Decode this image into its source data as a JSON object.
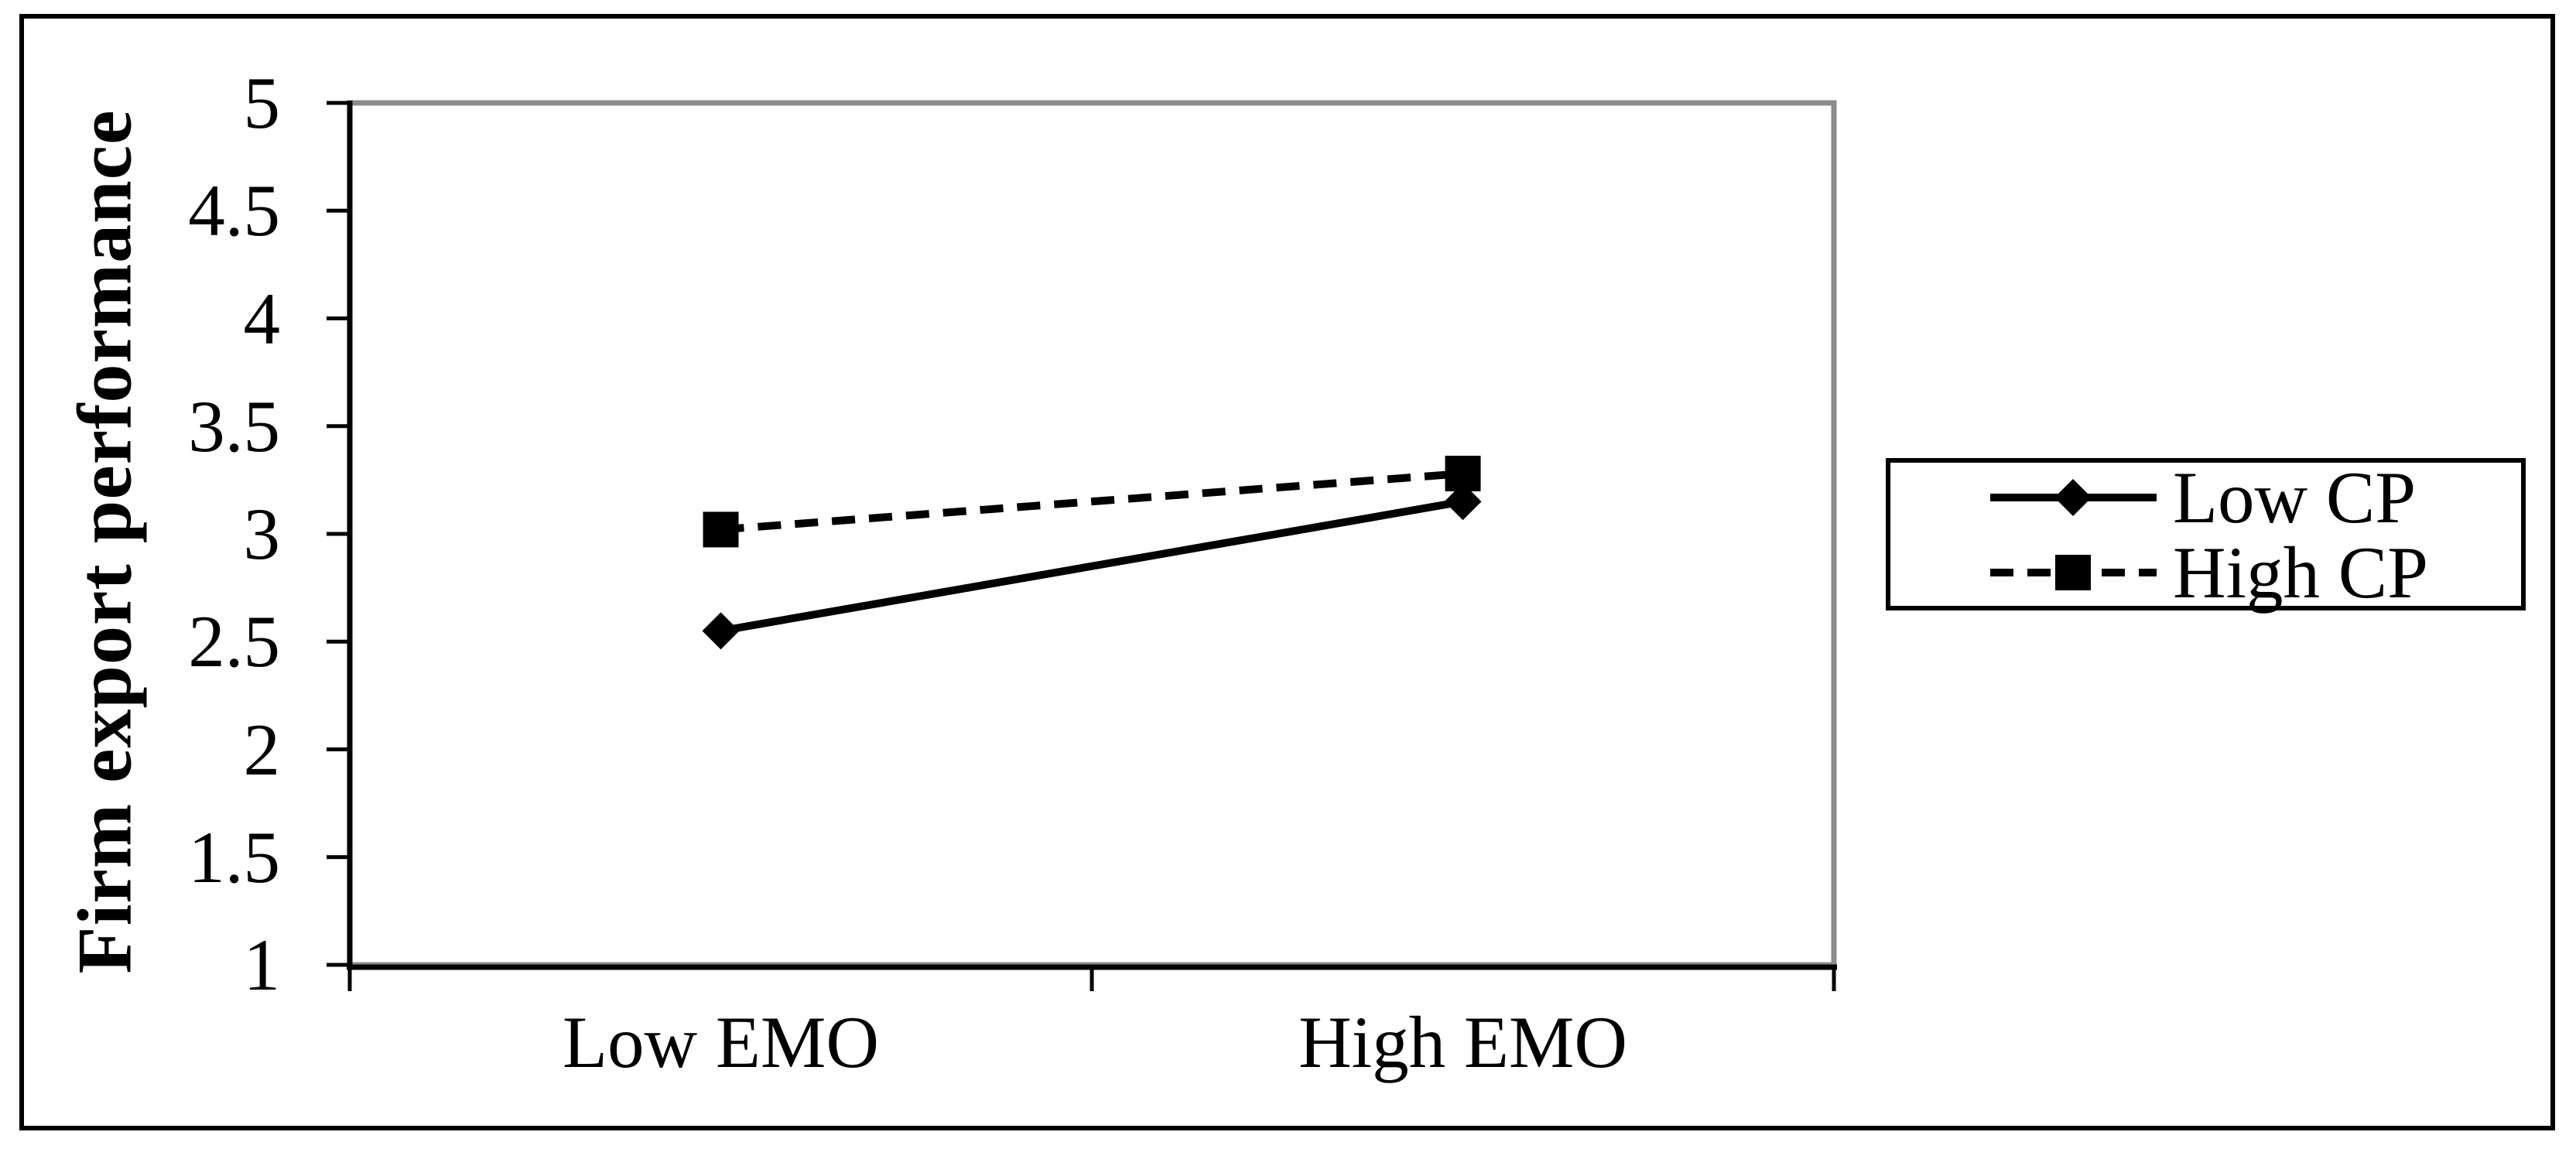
{
  "figure": {
    "background": "#ffffff",
    "border_color": "#000000"
  },
  "chart_data": {
    "type": "line",
    "title": "",
    "categories": [
      "Low EMO",
      "High EMO"
    ],
    "series": [
      {
        "name": "Low CP",
        "values": [
          2.55,
          3.15
        ],
        "line_style": "solid",
        "marker": "diamond",
        "color": "#000000"
      },
      {
        "name": "High CP",
        "values": [
          3.02,
          3.28
        ],
        "line_style": "dashed",
        "marker": "square",
        "color": "#000000"
      }
    ],
    "xlabel": "",
    "ylabel": "Firm export performance",
    "ylim": [
      1,
      5
    ],
    "ytick_step": 0.5,
    "ytick_labels": [
      "5",
      "4.5",
      "4",
      "3.5",
      "3",
      "2.5",
      "2",
      "1.5",
      "1"
    ],
    "grid": false,
    "legend_position": "right",
    "plot_border_color": "#8c8c8c",
    "axis_color": "#000000"
  }
}
